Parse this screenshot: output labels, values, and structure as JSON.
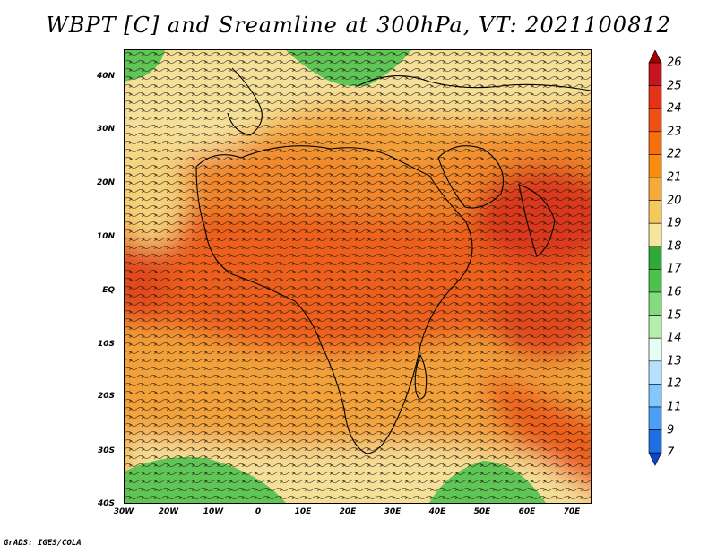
{
  "title": "WBPT [C] and Sreamline at 300hPa, VT: 2021100812",
  "credit": "GrADS: IGES/COLA",
  "map": {
    "lat_ticks": [
      "40N",
      "30N",
      "20N",
      "10N",
      "EQ",
      "10S",
      "20S",
      "30S",
      "40S"
    ],
    "lon_ticks": [
      "30W",
      "20W",
      "10W",
      "0",
      "10E",
      "20E",
      "30E",
      "40E",
      "50E",
      "60E",
      "70E"
    ],
    "lat_range": [
      -40,
      44
    ],
    "lon_range": [
      -30,
      74
    ]
  },
  "colorbar": {
    "labels": [
      "26",
      "25",
      "24",
      "23",
      "22",
      "21",
      "20",
      "19",
      "18",
      "17",
      "16",
      "15",
      "14",
      "13",
      "12",
      "11",
      "9",
      "7"
    ],
    "colors": [
      "#a50000",
      "#c8141e",
      "#e63219",
      "#f05014",
      "#f76e0f",
      "#fa8c0f",
      "#f7aa37",
      "#f5c85a",
      "#f5e69b",
      "#2daa37",
      "#4bc34b",
      "#82dc7d",
      "#b4f0aa",
      "#e6fff5",
      "#b4e1ff",
      "#82c8ff",
      "#4ba0f5",
      "#1e6ee6",
      "#0a46d2"
    ]
  },
  "colors": {
    "green": "#4fc24f",
    "light_yellow": "#f5e09a",
    "orange": "#f29a34",
    "red_orange": "#ec5f1a",
    "red": "#d9391c"
  }
}
